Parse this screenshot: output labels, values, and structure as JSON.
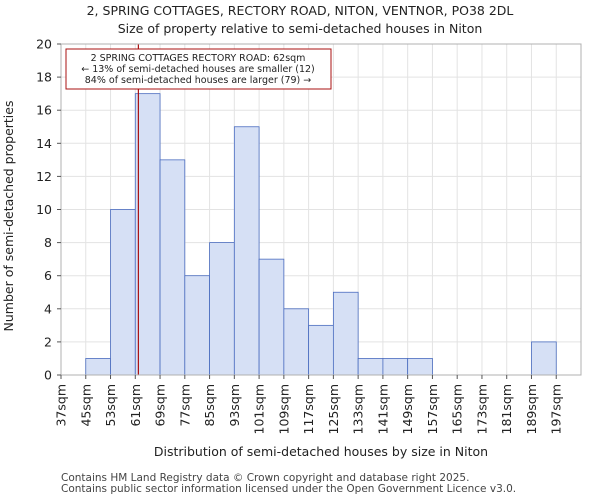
{
  "chart_data": {
    "type": "bar",
    "title": "2, SPRING COTTAGES, RECTORY ROAD, NITON, VENTNOR, PO38 2DL",
    "subtitle": "Size of property relative to semi-detached houses in Niton",
    "xlabel": "Distribution of semi-detached houses by size in Niton",
    "ylabel": "Number of semi-detached properties",
    "categories": [
      "37sqm",
      "45sqm",
      "53sqm",
      "61sqm",
      "69sqm",
      "77sqm",
      "85sqm",
      "93sqm",
      "101sqm",
      "109sqm",
      "117sqm",
      "125sqm",
      "133sqm",
      "141sqm",
      "149sqm",
      "157sqm",
      "165sqm",
      "173sqm",
      "181sqm",
      "189sqm",
      "197sqm"
    ],
    "bins": [
      37,
      45,
      53,
      61,
      69,
      77,
      85,
      93,
      101,
      109,
      117,
      125,
      133,
      141,
      149,
      157,
      165,
      173,
      181,
      189,
      197,
      205
    ],
    "values": [
      0,
      1,
      10,
      17,
      13,
      6,
      8,
      15,
      7,
      4,
      3,
      5,
      1,
      1,
      1,
      0,
      0,
      0,
      0,
      2,
      0
    ],
    "ylim": [
      0,
      20
    ],
    "yticks": [
      0,
      2,
      4,
      6,
      8,
      10,
      12,
      14,
      16,
      18,
      20
    ],
    "grid": true,
    "bar_color": "#d6e0f5",
    "bar_edge_color": "#4a6cbf",
    "marker": {
      "value": 62,
      "color": "#aa1111",
      "annotation": [
        "2 SPRING COTTAGES RECTORY ROAD: 62sqm",
        "← 13% of semi-detached houses are smaller (12)",
        "84% of semi-detached houses are larger (79) →"
      ]
    }
  },
  "footer": {
    "line1": "Contains HM Land Registry data © Crown copyright and database right 2025.",
    "line2": "Contains public sector information licensed under the Open Government Licence v3.0."
  }
}
